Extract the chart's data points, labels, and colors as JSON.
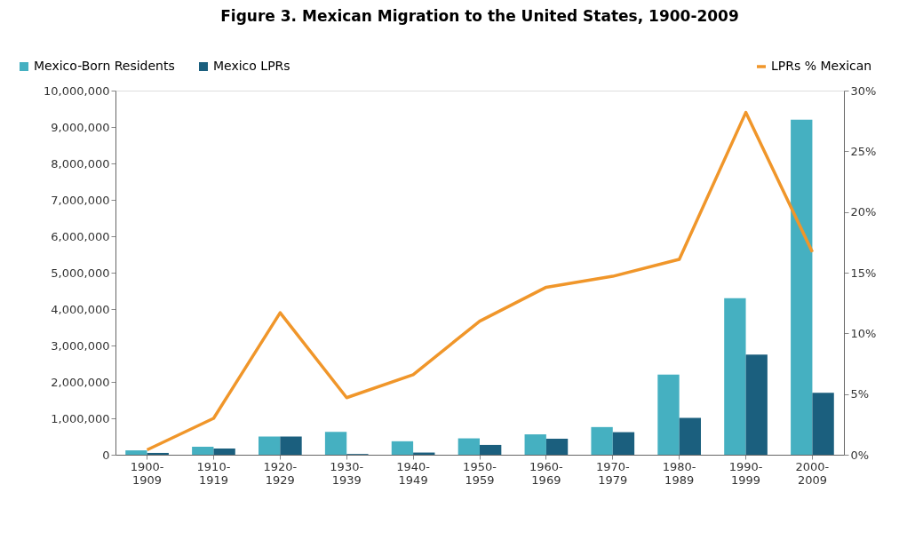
{
  "chart_data": {
    "type": "bar",
    "title": "Figure 3. Mexican Migration to the United States, 1900-2009",
    "categories": [
      "1900-\n1909",
      "1910-\n1919",
      "1920-\n1929",
      "1930-\n1939",
      "1940-\n1949",
      "1950-\n1959",
      "1960-\n1969",
      "1970-\n1979",
      "1980-\n1989",
      "1990-\n1999",
      "2000-\n2009"
    ],
    "series": [
      {
        "name": "Mexico-Born Residents",
        "color": "#45b0c1",
        "values": [
          120000,
          220000,
          500000,
          630000,
          370000,
          450000,
          560000,
          760000,
          2200000,
          4300000,
          9200000
        ]
      },
      {
        "name": "Mexico LPRs",
        "color": "#1b5f7e",
        "values": [
          50000,
          170000,
          500000,
          20000,
          60000,
          270000,
          440000,
          620000,
          1010000,
          2750000,
          1700000
        ]
      },
      {
        "name": "LPRs % Mexican",
        "type": "line",
        "axis": "y2",
        "color": "#f0962a",
        "values": [
          0.4,
          3.0,
          11.7,
          4.7,
          6.6,
          11.0,
          13.8,
          14.7,
          16.1,
          28.2,
          16.7
        ]
      }
    ],
    "ylim": [
      0,
      10000000
    ],
    "yticks": [
      0,
      {
        "value": 1000000,
        "label": "1,000,000"
      },
      {
        "value": 2000000,
        "label": "2,000,000"
      },
      {
        "value": 3000000,
        "label": "3,000,000"
      },
      {
        "value": 4000000,
        "label": "4,000,000"
      },
      {
        "value": 5000000,
        "label": "5,000,000"
      },
      {
        "value": 6000000,
        "label": "6,000,000"
      },
      {
        "value": 7000000,
        "label": "7,000,000"
      },
      {
        "value": 8000000,
        "label": "8,000,000"
      },
      {
        "value": 9000000,
        "label": "9,000,000"
      },
      {
        "value": 10000000,
        "label": "10,000,000"
      }
    ],
    "y2lim": [
      0,
      30
    ],
    "y2ticks": [
      {
        "value": 0,
        "label": "0%"
      },
      {
        "value": 5,
        "label": "5%"
      },
      {
        "value": 10,
        "label": "10%"
      },
      {
        "value": 15,
        "label": "15%"
      },
      {
        "value": 20,
        "label": "20%"
      },
      {
        "value": 25,
        "label": "25%"
      },
      {
        "value": 30,
        "label": "30%"
      }
    ],
    "grid": false,
    "legend": "top"
  }
}
